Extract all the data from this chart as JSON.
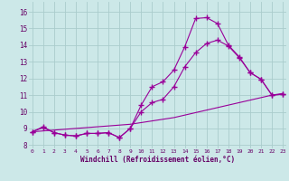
{
  "background_color": "#cce8e8",
  "line_color": "#990099",
  "grid_color": "#aacccc",
  "x_label": "Windchill (Refroidissement éolien,°C)",
  "x_ticks": [
    0,
    1,
    2,
    3,
    4,
    5,
    6,
    7,
    8,
    9,
    10,
    11,
    12,
    13,
    14,
    15,
    16,
    17,
    18,
    19,
    20,
    21,
    22,
    23
  ],
  "y_ticks": [
    8,
    9,
    10,
    11,
    12,
    13,
    14,
    15,
    16
  ],
  "ylim": [
    7.8,
    16.6
  ],
  "xlim": [
    -0.3,
    23.3
  ],
  "series": [
    {
      "x": [
        0,
        1,
        2,
        3,
        4,
        5,
        6,
        7,
        8,
        9,
        10,
        11,
        12,
        13,
        14,
        15,
        16,
        17,
        18,
        19,
        20,
        21,
        22,
        23
      ],
      "y": [
        8.8,
        9.1,
        8.75,
        8.6,
        8.55,
        8.7,
        8.7,
        8.75,
        8.45,
        9.0,
        10.4,
        11.5,
        11.8,
        12.5,
        13.9,
        15.6,
        15.65,
        15.3,
        14.0,
        13.3,
        12.35,
        11.95,
        11.0,
        11.05
      ],
      "marker": "+",
      "markersize": 4,
      "linewidth": 0.8,
      "linestyle": "-"
    },
    {
      "x": [
        0,
        1,
        2,
        3,
        4,
        5,
        6,
        7,
        8,
        9,
        10,
        11,
        12,
        13,
        14,
        15,
        16,
        17,
        18,
        19,
        20,
        21,
        22,
        23
      ],
      "y": [
        8.8,
        9.05,
        8.75,
        8.6,
        8.55,
        8.7,
        8.7,
        8.75,
        8.45,
        9.0,
        10.0,
        10.55,
        10.75,
        11.5,
        12.7,
        13.55,
        14.1,
        14.3,
        13.95,
        13.25,
        12.35,
        11.95,
        11.0,
        11.05
      ],
      "marker": "+",
      "markersize": 4,
      "linewidth": 0.8,
      "linestyle": "-"
    },
    {
      "x": [
        0,
        1,
        2,
        3,
        4,
        5,
        6,
        7,
        8,
        9,
        10,
        11,
        12,
        13,
        14,
        15,
        16,
        17,
        18,
        19,
        20,
        21,
        22,
        23
      ],
      "y": [
        8.8,
        8.85,
        8.9,
        8.95,
        9.0,
        9.05,
        9.1,
        9.15,
        9.2,
        9.25,
        9.35,
        9.45,
        9.55,
        9.65,
        9.8,
        9.95,
        10.1,
        10.25,
        10.4,
        10.55,
        10.7,
        10.85,
        11.0,
        11.1
      ],
      "marker": "None",
      "markersize": 0,
      "linewidth": 0.8,
      "linestyle": "-"
    }
  ]
}
